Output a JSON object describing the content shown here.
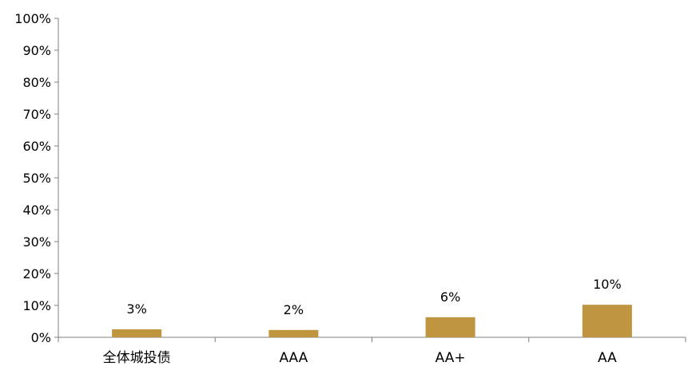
{
  "chart_data": {
    "type": "bar",
    "title": "",
    "xlabel": "",
    "ylabel": "",
    "categories": [
      "全体城投债",
      "AAA",
      "AA+",
      "AA"
    ],
    "values": [
      2.5,
      2.3,
      6.3,
      10.2
    ],
    "data_labels": [
      "3%",
      "2%",
      "6%",
      "10%"
    ],
    "ylim": [
      0,
      100
    ],
    "y_ticks": [
      0,
      10,
      20,
      30,
      40,
      50,
      60,
      70,
      80,
      90,
      100
    ],
    "y_tick_labels": [
      "0%",
      "10%",
      "20%",
      "30%",
      "40%",
      "50%",
      "60%",
      "70%",
      "80%",
      "90%",
      "100%"
    ],
    "bar_color": "#C0953F",
    "grid": false,
    "legend": "none"
  }
}
